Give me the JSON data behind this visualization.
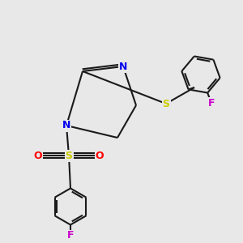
{
  "bg": "#e8e8e8",
  "bc": "#1a1a1a",
  "Nc": "#0000ee",
  "Sc": "#cccc00",
  "Oc": "#ff0000",
  "Fc": "#cc00cc",
  "lw": 1.5,
  "fs": 9.0,
  "xlim": [
    0,
    10
  ],
  "ylim": [
    0,
    10
  ]
}
